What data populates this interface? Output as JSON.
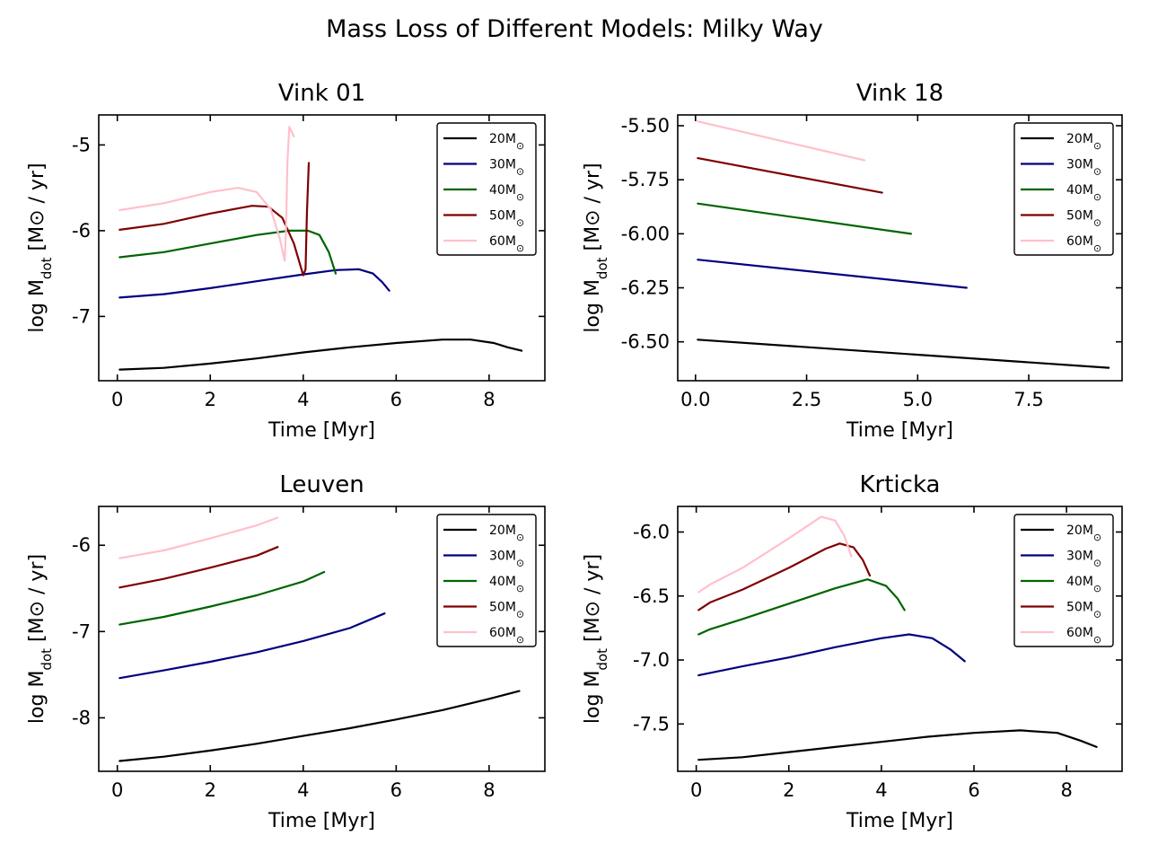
{
  "figure": {
    "title": "Mass Loss of Different Models: Milky Way"
  },
  "legend_items": [
    {
      "label": "20M",
      "sub": "⊙",
      "color": "#000000"
    },
    {
      "label": "30M",
      "sub": "⊙",
      "color": "#00007f"
    },
    {
      "label": "40M",
      "sub": "⊙",
      "color": "#006400"
    },
    {
      "label": "50M",
      "sub": "⊙",
      "color": "#7f0000"
    },
    {
      "label": "60M",
      "sub": "⊙",
      "color": "#ffc0cb"
    }
  ],
  "chart_data": [
    {
      "type": "line",
      "title": "Vink 01",
      "xlabel": "Time [Myr]",
      "ylabel_parts": {
        "pre": "log M",
        "sub": "dot",
        "post": " [M⊙ / yr]"
      },
      "xlim": [
        -0.4,
        9.2
      ],
      "ylim": [
        -7.75,
        -4.65
      ],
      "xticks": [
        0,
        2,
        4,
        6,
        8
      ],
      "xtick_labels": [
        "0",
        "2",
        "4",
        "6",
        "8"
      ],
      "yticks": [
        -7,
        -6,
        -5
      ],
      "ytick_labels": [
        "-7",
        "-6",
        "-5"
      ],
      "legend": "top-right",
      "grid": false,
      "series": [
        {
          "name": "20M⊙",
          "color": "#000000",
          "points": [
            [
              0.05,
              -7.62
            ],
            [
              1,
              -7.6
            ],
            [
              2,
              -7.55
            ],
            [
              3,
              -7.49
            ],
            [
              4,
              -7.42
            ],
            [
              5,
              -7.36
            ],
            [
              6,
              -7.31
            ],
            [
              7,
              -7.27
            ],
            [
              7.6,
              -7.27
            ],
            [
              8.1,
              -7.31
            ],
            [
              8.4,
              -7.36
            ],
            [
              8.7,
              -7.4
            ]
          ]
        },
        {
          "name": "30M⊙",
          "color": "#00007f",
          "points": [
            [
              0.05,
              -6.78
            ],
            [
              1,
              -6.74
            ],
            [
              2,
              -6.67
            ],
            [
              3,
              -6.59
            ],
            [
              4,
              -6.51
            ],
            [
              4.7,
              -6.46
            ],
            [
              5.2,
              -6.45
            ],
            [
              5.5,
              -6.5
            ],
            [
              5.7,
              -6.6
            ],
            [
              5.85,
              -6.7
            ]
          ]
        },
        {
          "name": "40M⊙",
          "color": "#006400",
          "points": [
            [
              0.05,
              -6.31
            ],
            [
              1,
              -6.25
            ],
            [
              2,
              -6.15
            ],
            [
              3,
              -6.05
            ],
            [
              3.7,
              -6.0
            ],
            [
              4.1,
              -6.0
            ],
            [
              4.35,
              -6.05
            ],
            [
              4.55,
              -6.25
            ],
            [
              4.7,
              -6.5
            ]
          ]
        },
        {
          "name": "50M⊙",
          "color": "#7f0000",
          "points": [
            [
              0.05,
              -5.99
            ],
            [
              1,
              -5.92
            ],
            [
              2,
              -5.8
            ],
            [
              2.9,
              -5.71
            ],
            [
              3.25,
              -5.72
            ],
            [
              3.55,
              -5.85
            ],
            [
              3.8,
              -6.15
            ],
            [
              4.0,
              -6.52
            ],
            [
              4.05,
              -6.45
            ],
            [
              4.08,
              -5.8
            ],
            [
              4.12,
              -5.21
            ]
          ]
        },
        {
          "name": "60M⊙",
          "color": "#ffc0cb",
          "points": [
            [
              0.05,
              -5.76
            ],
            [
              1,
              -5.68
            ],
            [
              2,
              -5.55
            ],
            [
              2.6,
              -5.5
            ],
            [
              3.0,
              -5.55
            ],
            [
              3.3,
              -5.75
            ],
            [
              3.5,
              -6.1
            ],
            [
              3.6,
              -6.35
            ],
            [
              3.63,
              -6.0
            ],
            [
              3.66,
              -5.2
            ],
            [
              3.7,
              -4.79
            ],
            [
              3.8,
              -4.9
            ]
          ]
        }
      ]
    },
    {
      "type": "line",
      "title": "Vink 18",
      "xlabel": "Time [Myr]",
      "ylabel_parts": {
        "pre": "log M",
        "sub": "dot",
        "post": " [M⊙ / yr]"
      },
      "xlim": [
        -0.4,
        9.6
      ],
      "ylim": [
        -6.68,
        -5.45
      ],
      "xticks": [
        0,
        2.5,
        5,
        7.5
      ],
      "xtick_labels": [
        "0.0",
        "2.5",
        "5.0",
        "7.5"
      ],
      "yticks": [
        -6.5,
        -6.25,
        -6.0,
        -5.75,
        -5.5
      ],
      "ytick_labels": [
        "-6.50",
        "-6.25",
        "-6.00",
        "-5.75",
        "-5.50"
      ],
      "legend": "top-right",
      "grid": false,
      "series": [
        {
          "name": "20M⊙",
          "color": "#000000",
          "points": [
            [
              0.05,
              -6.49
            ],
            [
              9.3,
              -6.62
            ]
          ]
        },
        {
          "name": "30M⊙",
          "color": "#00007f",
          "points": [
            [
              0.05,
              -6.12
            ],
            [
              6.1,
              -6.25
            ]
          ]
        },
        {
          "name": "40M⊙",
          "color": "#006400",
          "points": [
            [
              0.05,
              -5.86
            ],
            [
              4.85,
              -6.0
            ]
          ]
        },
        {
          "name": "50M⊙",
          "color": "#7f0000",
          "points": [
            [
              0.05,
              -5.65
            ],
            [
              4.2,
              -5.81
            ]
          ]
        },
        {
          "name": "60M⊙",
          "color": "#ffc0cb",
          "points": [
            [
              0.05,
              -5.48
            ],
            [
              3.8,
              -5.66
            ]
          ]
        }
      ]
    },
    {
      "type": "line",
      "title": "Leuven",
      "xlabel": "Time [Myr]",
      "ylabel_parts": {
        "pre": "log M",
        "sub": "dot",
        "post": " [M⊙ / yr]"
      },
      "xlim": [
        -0.4,
        9.2
      ],
      "ylim": [
        -8.62,
        -5.55
      ],
      "xticks": [
        0,
        2,
        4,
        6,
        8
      ],
      "xtick_labels": [
        "0",
        "2",
        "4",
        "6",
        "8"
      ],
      "yticks": [
        -8,
        -7,
        -6
      ],
      "ytick_labels": [
        "-8",
        "-7",
        "-6"
      ],
      "legend": "top-right",
      "grid": false,
      "series": [
        {
          "name": "20M⊙",
          "color": "#000000",
          "points": [
            [
              0.05,
              -8.5
            ],
            [
              1,
              -8.45
            ],
            [
              2,
              -8.38
            ],
            [
              3,
              -8.3
            ],
            [
              4,
              -8.21
            ],
            [
              5,
              -8.12
            ],
            [
              6,
              -8.02
            ],
            [
              7,
              -7.91
            ],
            [
              8,
              -7.78
            ],
            [
              8.65,
              -7.69
            ]
          ]
        },
        {
          "name": "30M⊙",
          "color": "#00007f",
          "points": [
            [
              0.05,
              -7.54
            ],
            [
              1,
              -7.45
            ],
            [
              2,
              -7.35
            ],
            [
              3,
              -7.24
            ],
            [
              4,
              -7.11
            ],
            [
              5,
              -6.96
            ],
            [
              5.75,
              -6.79
            ]
          ]
        },
        {
          "name": "40M⊙",
          "color": "#006400",
          "points": [
            [
              0.05,
              -6.92
            ],
            [
              1,
              -6.83
            ],
            [
              2,
              -6.71
            ],
            [
              3,
              -6.58
            ],
            [
              4,
              -6.42
            ],
            [
              4.45,
              -6.31
            ]
          ]
        },
        {
          "name": "50M⊙",
          "color": "#7f0000",
          "points": [
            [
              0.05,
              -6.49
            ],
            [
              1,
              -6.39
            ],
            [
              2,
              -6.26
            ],
            [
              3,
              -6.12
            ],
            [
              3.45,
              -6.02
            ]
          ]
        },
        {
          "name": "60M⊙",
          "color": "#ffc0cb",
          "points": [
            [
              0.05,
              -6.15
            ],
            [
              1,
              -6.06
            ],
            [
              2,
              -5.92
            ],
            [
              3,
              -5.77
            ],
            [
              3.45,
              -5.68
            ]
          ]
        }
      ]
    },
    {
      "type": "line",
      "title": "Krticka",
      "xlabel": "Time [Myr]",
      "ylabel_parts": {
        "pre": "log M",
        "sub": "dot",
        "post": " [M⊙ / yr]"
      },
      "xlim": [
        -0.4,
        9.2
      ],
      "ylim": [
        -7.87,
        -5.8
      ],
      "xticks": [
        0,
        2,
        4,
        6,
        8
      ],
      "xtick_labels": [
        "0",
        "2",
        "4",
        "6",
        "8"
      ],
      "yticks": [
        -7.5,
        -7.0,
        -6.5,
        -6.0
      ],
      "ytick_labels": [
        "-7.5",
        "-7.0",
        "-6.5",
        "-6.0"
      ],
      "legend": "top-right",
      "grid": false,
      "series": [
        {
          "name": "20M⊙",
          "color": "#000000",
          "points": [
            [
              0.05,
              -7.78
            ],
            [
              1,
              -7.76
            ],
            [
              2,
              -7.72
            ],
            [
              3,
              -7.68
            ],
            [
              4,
              -7.64
            ],
            [
              5,
              -7.6
            ],
            [
              6,
              -7.57
            ],
            [
              7,
              -7.55
            ],
            [
              7.8,
              -7.57
            ],
            [
              8.3,
              -7.63
            ],
            [
              8.65,
              -7.68
            ]
          ]
        },
        {
          "name": "30M⊙",
          "color": "#00007f",
          "points": [
            [
              0.05,
              -7.12
            ],
            [
              1,
              -7.05
            ],
            [
              2,
              -6.98
            ],
            [
              3,
              -6.9
            ],
            [
              4,
              -6.83
            ],
            [
              4.6,
              -6.8
            ],
            [
              5.1,
              -6.83
            ],
            [
              5.5,
              -6.92
            ],
            [
              5.8,
              -7.01
            ]
          ]
        },
        {
          "name": "40M⊙",
          "color": "#006400",
          "points": [
            [
              0.05,
              -6.8
            ],
            [
              0.3,
              -6.76
            ],
            [
              1,
              -6.68
            ],
            [
              2,
              -6.56
            ],
            [
              3,
              -6.44
            ],
            [
              3.7,
              -6.37
            ],
            [
              4.1,
              -6.42
            ],
            [
              4.35,
              -6.52
            ],
            [
              4.5,
              -6.61
            ]
          ]
        },
        {
          "name": "50M⊙",
          "color": "#7f0000",
          "points": [
            [
              0.05,
              -6.61
            ],
            [
              0.3,
              -6.55
            ],
            [
              1,
              -6.45
            ],
            [
              2,
              -6.28
            ],
            [
              2.8,
              -6.13
            ],
            [
              3.1,
              -6.09
            ],
            [
              3.4,
              -6.12
            ],
            [
              3.6,
              -6.22
            ],
            [
              3.75,
              -6.34
            ]
          ]
        },
        {
          "name": "60M⊙",
          "color": "#ffc0cb",
          "points": [
            [
              0.05,
              -6.47
            ],
            [
              0.3,
              -6.41
            ],
            [
              1,
              -6.28
            ],
            [
              2,
              -6.05
            ],
            [
              2.7,
              -5.88
            ],
            [
              3.0,
              -5.91
            ],
            [
              3.2,
              -6.03
            ],
            [
              3.35,
              -6.19
            ]
          ]
        }
      ]
    }
  ]
}
